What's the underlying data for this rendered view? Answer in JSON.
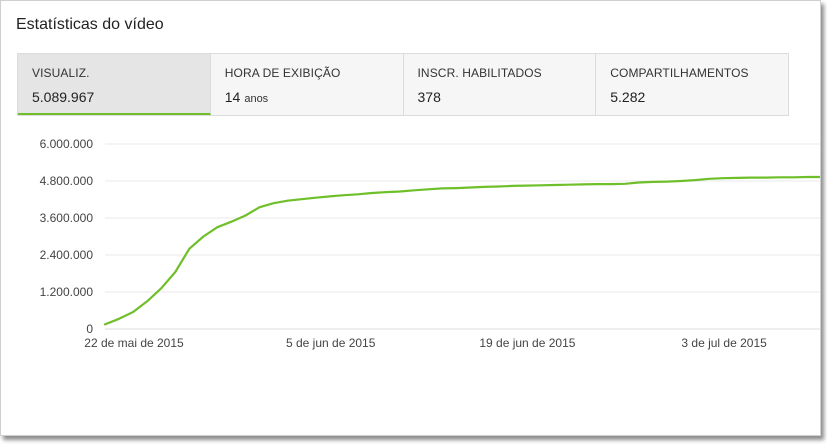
{
  "title": "Estatísticas do vídeo",
  "tabs": [
    {
      "label": "VISUALIZ.",
      "value": "5.089.967",
      "unit": "",
      "active": true
    },
    {
      "label": "HORA DE EXIBIÇÃO",
      "value": "14",
      "unit": "anos",
      "active": false
    },
    {
      "label": "INSCR. HABILITADOS",
      "value": "378",
      "unit": "",
      "active": false
    },
    {
      "label": "COMPARTILHAMENTOS",
      "value": "5.282",
      "unit": "",
      "active": false
    }
  ],
  "colors": {
    "line": "#6fbf2a",
    "grid": "#e8e8e8",
    "accent": "#6fbf2a"
  },
  "chart_data": {
    "type": "line",
    "x_tick_labels": [
      "22 de mai de 2015",
      "5 de jun de 2015",
      "19 de jun de 2015",
      "3 de jul de 2015"
    ],
    "x_tick_days": [
      0,
      14,
      28,
      42
    ],
    "y_tick_labels": [
      "0",
      "1.200.000",
      "2.400.000",
      "3.600.000",
      "4.800.000",
      "6.000.000"
    ],
    "ylim": [
      0,
      6000000
    ],
    "grid": true,
    "series": [
      {
        "days": [
          0,
          1,
          2,
          3,
          4,
          5,
          6,
          7,
          8,
          9,
          10,
          11,
          12,
          13,
          14,
          15,
          16,
          17,
          18,
          19,
          20,
          21,
          22,
          23,
          24,
          25,
          26,
          27,
          28,
          29,
          30,
          31,
          32,
          33,
          34,
          35,
          36,
          37,
          38,
          39,
          40,
          41,
          42,
          43,
          44,
          45,
          46,
          47,
          48,
          49,
          50,
          51,
          52,
          53,
          54,
          55,
          56,
          57,
          58,
          59
        ],
        "values": [
          150000,
          330000,
          550000,
          900000,
          1320000,
          1850000,
          2600000,
          3000000,
          3300000,
          3480000,
          3680000,
          3950000,
          4080000,
          4160000,
          4210000,
          4260000,
          4300000,
          4340000,
          4370000,
          4410000,
          4440000,
          4460000,
          4500000,
          4530000,
          4560000,
          4570000,
          4590000,
          4610000,
          4620000,
          4640000,
          4650000,
          4660000,
          4670000,
          4680000,
          4690000,
          4700000,
          4700000,
          4710000,
          4750000,
          4770000,
          4780000,
          4800000,
          4830000,
          4870000,
          4890000,
          4900000,
          4910000,
          4910000,
          4920000,
          4920000,
          4930000,
          4930000,
          4940000,
          4940000,
          4950000,
          4960000,
          4960000,
          4970000,
          4980000,
          4990000
        ]
      }
    ]
  }
}
